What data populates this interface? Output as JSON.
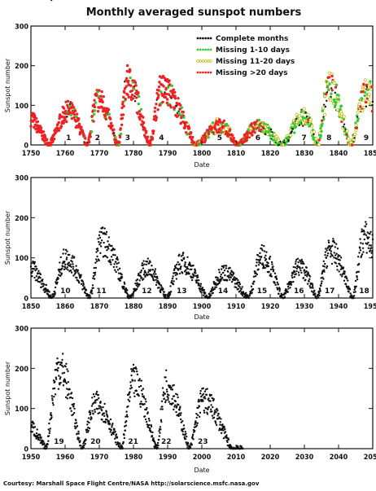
{
  "title": "Monthly averaged sunspot numbers",
  "credit": "Courtesy: Marshall Space Flight Centre/NASA http://solarscience.msfc.nasa.gov",
  "chart_data": [
    {
      "type": "scatter",
      "xlabel": "Date",
      "ylabel": "Sunspot number",
      "xlim": [
        1750,
        1850
      ],
      "ylim": [
        0,
        300
      ],
      "xticks": [
        "1750",
        "1760",
        "1770",
        "1780",
        "1790",
        "1800",
        "1810",
        "1820",
        "1830",
        "1840",
        "1850"
      ],
      "yticks": [
        "0",
        "100",
        "200",
        "300"
      ],
      "legend": {
        "placement": "top-right",
        "entries": [
          {
            "name": "Complete months",
            "color": "#111111"
          },
          {
            "name": "Missing 1-10 days",
            "color": "#33cc33"
          },
          {
            "name": "Missing 11-20 days",
            "color": "#d4c400"
          },
          {
            "name": "Missing >20 days",
            "color": "#ee2222"
          }
        ]
      },
      "cycles": [
        {
          "label": "1",
          "x": 1761,
          "peak": 86
        },
        {
          "label": "2",
          "x": 1769.5,
          "peak": 115
        },
        {
          "label": "3",
          "x": 1778.3,
          "peak": 158
        },
        {
          "label": "4",
          "x": 1788.2,
          "peak": 141
        },
        {
          "label": "5",
          "x": 1805.2,
          "peak": 49
        },
        {
          "label": "6",
          "x": 1816.4,
          "peak": 48
        },
        {
          "label": "7",
          "x": 1829.9,
          "peak": 71
        },
        {
          "label": "8",
          "x": 1837.2,
          "peak": 146
        },
        {
          "label": "9",
          "x": 1848.1,
          "peak": 131
        }
      ],
      "cycle_minima": [
        1755.2,
        1766.5,
        1775.5,
        1784.7,
        1798.3,
        1810.6,
        1823.3,
        1833.9,
        1843.5
      ],
      "series": [
        {
          "name": "Complete months",
          "color": "#111111",
          "range": [
            1818,
            1850
          ]
        },
        {
          "name": "Missing 1-10 days",
          "color": "#33cc33",
          "range": [
            1760,
            1850
          ]
        },
        {
          "name": "Missing 11-20 days",
          "color": "#d4c400",
          "range": [
            1765,
            1850
          ]
        },
        {
          "name": "Missing >20 days",
          "color": "#ee2222",
          "range": [
            1749,
            1818
          ]
        }
      ]
    },
    {
      "type": "scatter",
      "xlabel": "Date",
      "ylabel": "Sunspot number",
      "xlim": [
        1850,
        1950
      ],
      "ylim": [
        0,
        300
      ],
      "xticks": [
        "1850",
        "1860",
        "1870",
        "1880",
        "1890",
        "1900",
        "1910",
        "1920",
        "1930",
        "1940",
        "1950"
      ],
      "yticks": [
        "0",
        "100",
        "200",
        "300"
      ],
      "cycles": [
        {
          "label": "10",
          "x": 1860.1,
          "peak": 97
        },
        {
          "label": "11",
          "x": 1870.6,
          "peak": 140
        },
        {
          "label": "12",
          "x": 1883.9,
          "peak": 75
        },
        {
          "label": "13",
          "x": 1894.1,
          "peak": 88
        },
        {
          "label": "14",
          "x": 1906.2,
          "peak": 64
        },
        {
          "label": "15",
          "x": 1917.6,
          "peak": 105
        },
        {
          "label": "16",
          "x": 1928.4,
          "peak": 78
        },
        {
          "label": "17",
          "x": 1937.4,
          "peak": 119
        },
        {
          "label": "18",
          "x": 1947.5,
          "peak": 152
        }
      ],
      "cycle_minima": [
        1856.0,
        1867.2,
        1878.9,
        1889.6,
        1901.7,
        1913.6,
        1923.6,
        1933.8,
        1944.2
      ],
      "series": [
        {
          "name": "Monthly averaged sunspot number",
          "color": "#111111",
          "range": [
            1850,
            1950
          ]
        }
      ]
    },
    {
      "type": "scatter",
      "xlabel": "Date",
      "ylabel": "Sunspot number",
      "xlim": [
        1950,
        2050
      ],
      "ylim": [
        0,
        300
      ],
      "xticks": [
        "1950",
        "1960",
        "1970",
        "1980",
        "1990",
        "2000",
        "2010",
        "2020",
        "2030",
        "2040",
        "2050"
      ],
      "yticks": [
        "0",
        "100",
        "200",
        "300"
      ],
      "cycles": [
        {
          "label": "19",
          "x": 1958.2,
          "peak": 201
        },
        {
          "label": "20",
          "x": 1968.9,
          "peak": 111
        },
        {
          "label": "21",
          "x": 1979.9,
          "peak": 165
        },
        {
          "label": "22",
          "x": 1989.6,
          "peak": 159
        },
        {
          "label": "23",
          "x": 2000.3,
          "peak": 121
        }
      ],
      "cycle_minima": [
        1954.3,
        1964.9,
        1976.5,
        1986.8,
        1996.4,
        2008.9
      ],
      "series": [
        {
          "name": "Monthly averaged sunspot number",
          "color": "#111111",
          "range": [
            1950,
            2012
          ]
        }
      ]
    }
  ]
}
